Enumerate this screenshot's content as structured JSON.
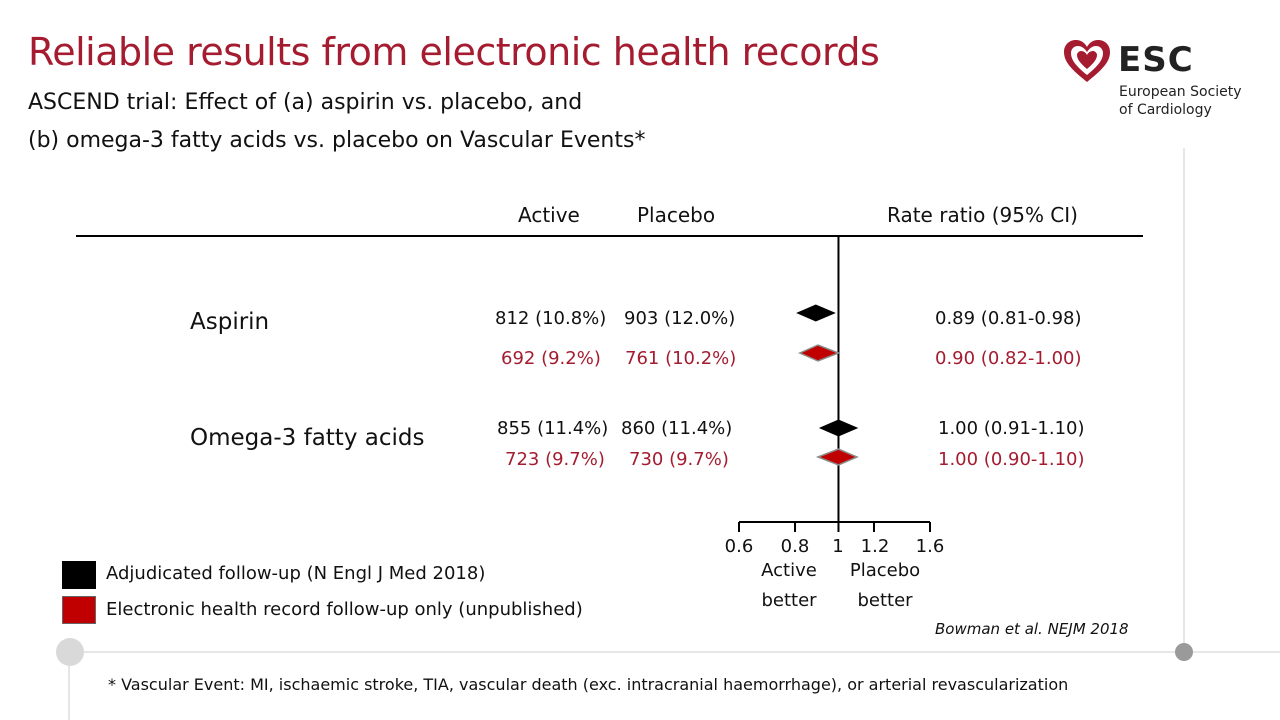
{
  "slide": {
    "title": "Reliable results from electronic health records",
    "subtitle_line1": "ASCEND trial: Effect of (a) aspirin vs. placebo, and",
    "subtitle_line2": "(b) omega-3 fatty acids vs. placebo on Vascular Events*",
    "citation": "Bowman et al. NEJM 2018",
    "footnote": "* Vascular Event: MI, ischaemic stroke, TIA, vascular death (exc. intracranial haemorrhage), or arterial revascularization"
  },
  "logo": {
    "word": "ESC",
    "line1": "European Society",
    "line2": "of Cardiology",
    "brand_color": "#a51c30"
  },
  "table": {
    "header_active": "Active",
    "header_placebo": "Placebo",
    "header_ratio": "Rate ratio (95% CI)"
  },
  "legend": {
    "adjudicated": "Adjudicated follow-up (N Engl J Med 2018)",
    "ehr": "Electronic health record follow-up only (unpublished)"
  },
  "axis": {
    "active_better_1": "Active",
    "active_better_2": "better",
    "placebo_better_1": "Placebo",
    "placebo_better_2": "better"
  },
  "colors": {
    "adjudicated": "#000000",
    "ehr": "#c00000",
    "text_red": "#a51c30"
  },
  "chart_data": {
    "type": "forest",
    "xscale": "log",
    "xlim": [
      0.6,
      1.6
    ],
    "ticks": [
      "0.6",
      "0.8",
      "1",
      "1.2",
      "1.6"
    ],
    "tick_values": [
      0.6,
      0.8,
      1.0,
      1.2,
      1.6
    ],
    "reference_line": 1.0,
    "groups": [
      {
        "label": "Aspirin",
        "rows": [
          {
            "series": "Adjudicated follow-up (N Engl J Med 2018)",
            "active": "812 (10.8%)",
            "placebo": "903 (12.0%)",
            "ratio_text": "0.89 (0.81-0.98)",
            "rr": 0.89,
            "lo": 0.81,
            "hi": 0.98
          },
          {
            "series": "Electronic health record follow-up only (unpublished)",
            "active": "692 (9.2%)",
            "placebo": "761 (10.2%)",
            "ratio_text": "0.90 (0.82-1.00)",
            "rr": 0.9,
            "lo": 0.82,
            "hi": 1.0
          }
        ]
      },
      {
        "label": "Omega-3 fatty acids",
        "rows": [
          {
            "series": "Adjudicated follow-up (N Engl J Med 2018)",
            "active": "855 (11.4%)",
            "placebo": "860 (11.4%)",
            "ratio_text": "1.00 (0.91-1.10)",
            "rr": 1.0,
            "lo": 0.91,
            "hi": 1.1
          },
          {
            "series": "Electronic health record follow-up only (unpublished)",
            "active": "723 (9.7%)",
            "placebo": "730 (9.7%)",
            "ratio_text": "1.00 (0.90-1.10)",
            "rr": 1.0,
            "lo": 0.9,
            "hi": 1.1
          }
        ]
      }
    ]
  }
}
